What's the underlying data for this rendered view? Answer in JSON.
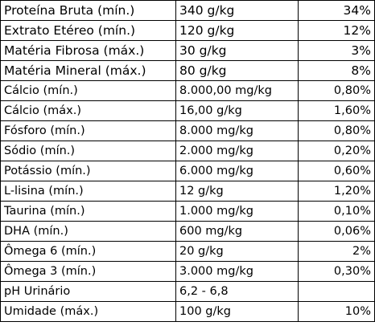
{
  "table": {
    "rows": [
      [
        "Proteína Bruta (mín.)",
        "340 g/kg",
        "34%"
      ],
      [
        "Extrato Etéreo (mín.)",
        "120 g/kg",
        "12%"
      ],
      [
        "Matéria Fibrosa (máx.)",
        "30 g/kg",
        "3%"
      ],
      [
        "Matéria Mineral (máx.)",
        "80 g/kg",
        "8%"
      ],
      [
        "Cálcio (mín.)",
        "8.000,00 mg/kg",
        "0,80%"
      ],
      [
        "Cálcio (máx.)",
        "16,00 g/kg",
        "1,60%"
      ],
      [
        "Fósforo (mín.)",
        "8.000 mg/kg",
        "0,80%"
      ],
      [
        "Sódio (mín.)",
        "2.000 mg/kg",
        "0,20%"
      ],
      [
        "Potássio (mín.)",
        "6.000 mg/kg",
        "0,60%"
      ],
      [
        "L-lisina (mín.)",
        "12 g/kg",
        "1,20%"
      ],
      [
        "Taurina (mín.)",
        "1.000 mg/kg",
        "0,10%"
      ],
      [
        "DHA (mín.)",
        "600 mg/kg",
        "0,06%"
      ],
      [
        "Ômega 6 (mín.)",
        "20 g/kg",
        "2%"
      ],
      [
        "Ômega 3 (mín.)",
        "3.000 mg/kg",
        "0,30%"
      ],
      [
        "pH Urinário",
        "6,2 - 6,8"
      ],
      [
        "Umidade (máx.)",
        "100 g/kg",
        "10%"
      ]
    ]
  }
}
